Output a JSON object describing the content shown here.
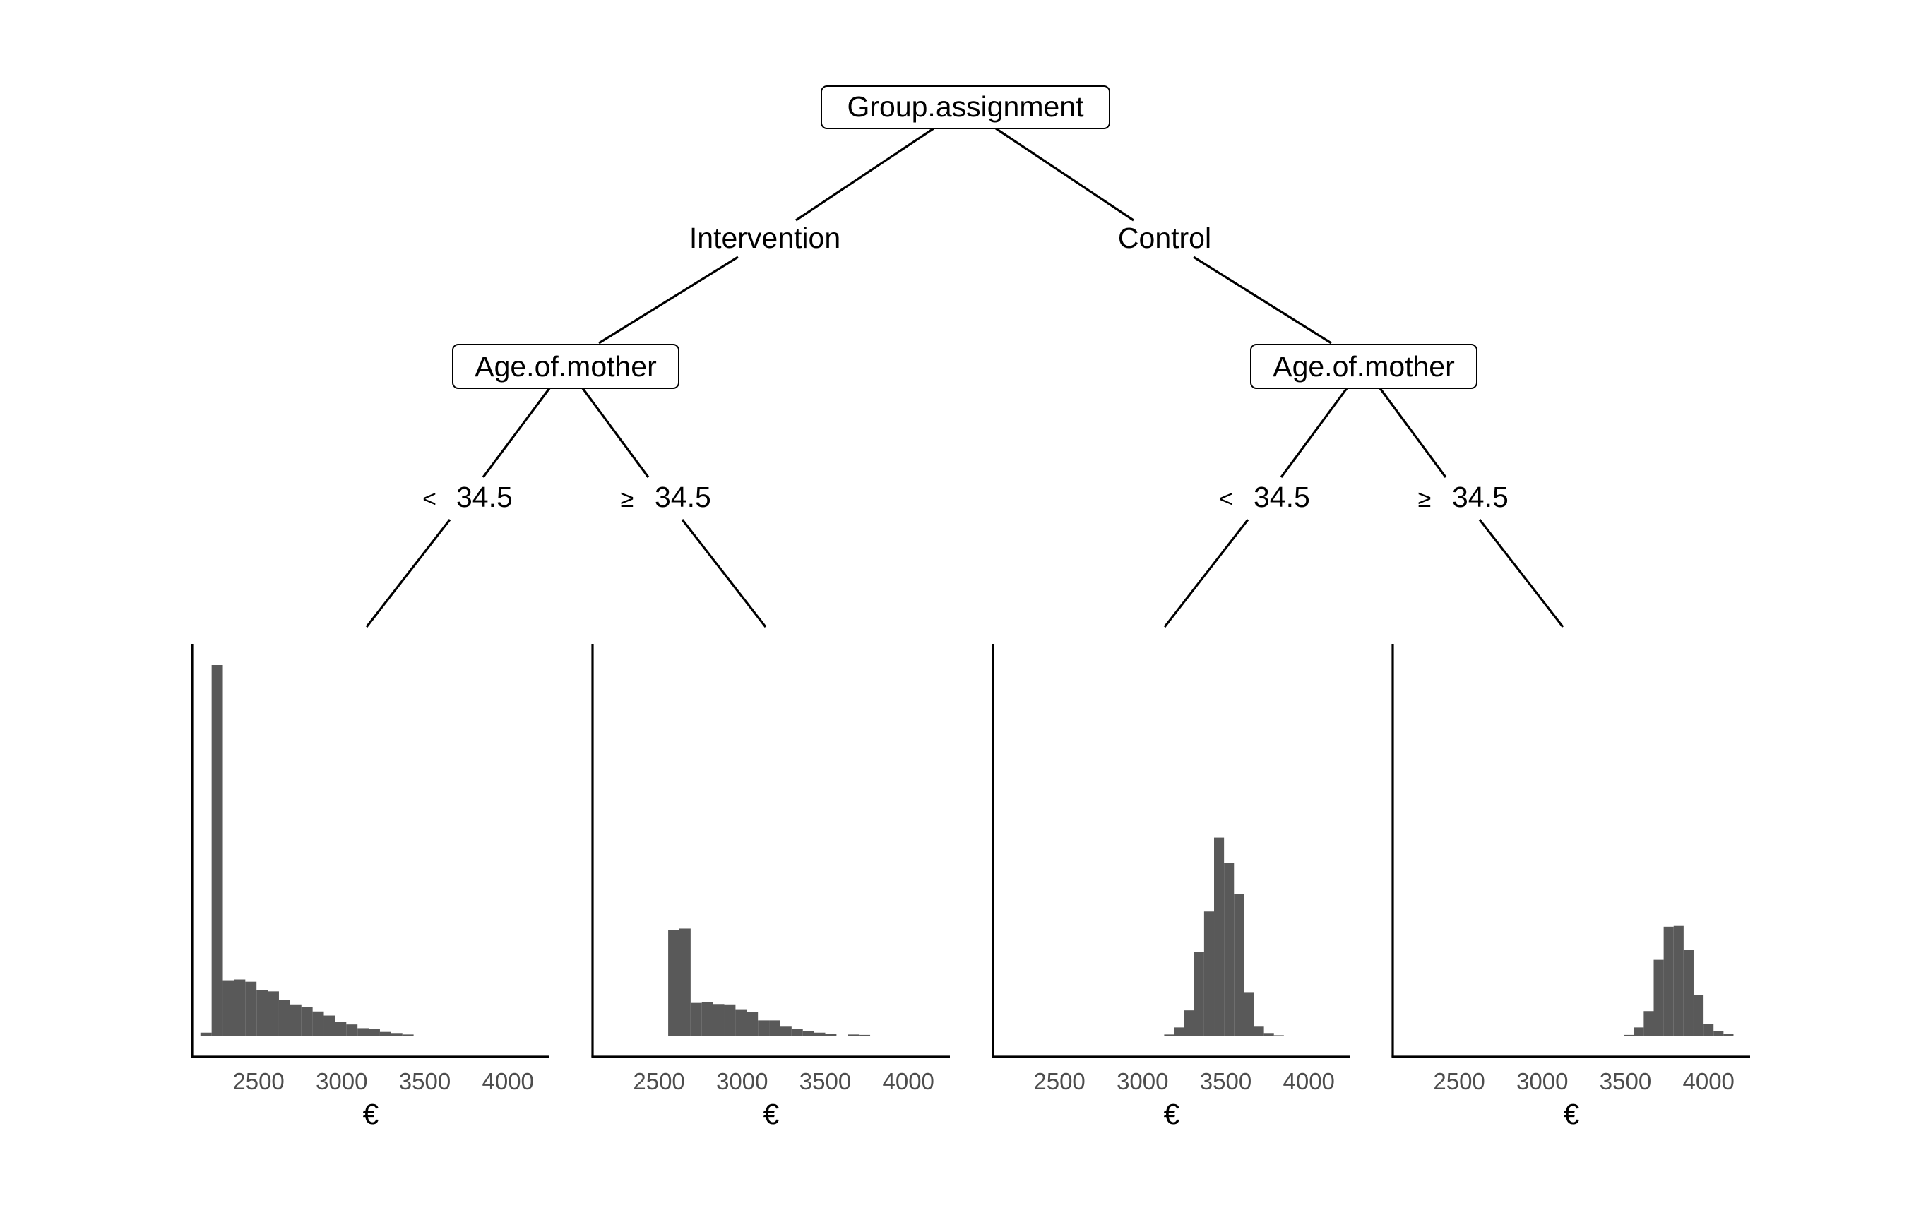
{
  "tree": {
    "root": {
      "label": "Group.assignment"
    },
    "branches": [
      {
        "edge_label": "Intervention",
        "node": {
          "label": "Age.of.mother"
        },
        "splits": [
          {
            "symbol": "<",
            "value": "34.5"
          },
          {
            "symbol": "≥",
            "value": "34.5"
          }
        ]
      },
      {
        "edge_label": "Control",
        "node": {
          "label": "Age.of.mother"
        },
        "splits": [
          {
            "symbol": "<",
            "value": "34.5"
          },
          {
            "symbol": "≥",
            "value": "34.5"
          }
        ]
      }
    ]
  },
  "chart_data": [
    {
      "type": "bar",
      "title": "",
      "xlabel": "€",
      "xlim": [
        2100,
        4250
      ],
      "xticks": [
        2500,
        3000,
        3500,
        4000
      ],
      "bin_width": 67.5,
      "bins_start": [
        2150,
        2217.5,
        2285,
        2352.5,
        2420,
        2487.5,
        2555,
        2622.5,
        2690,
        2757.5,
        2825,
        2892.5,
        2960,
        3027.5,
        3095,
        3162.5,
        3230,
        3297.5,
        3365
      ],
      "values": [
        1,
        100,
        15.1,
        15.3,
        14.7,
        12.4,
        12.1,
        9.8,
        8.6,
        7.9,
        6.7,
        5.6,
        3.9,
        3.2,
        2.2,
        2.0,
        1.2,
        0.9,
        0.5
      ]
    },
    {
      "type": "bar",
      "title": "",
      "xlabel": "€",
      "xlim": [
        2100,
        4250
      ],
      "xticks": [
        2500,
        3000,
        3500,
        4000
      ],
      "bin_width": 67.5,
      "bins_start": [
        2555,
        2622.5,
        2690,
        2757.5,
        2825,
        2892.5,
        2960,
        3027.5,
        3095,
        3162.5,
        3230,
        3297.5,
        3365,
        3432.5,
        3500,
        3635,
        3702.5
      ],
      "values": [
        28.6,
        29.0,
        9.0,
        9.2,
        8.7,
        8.6,
        7.3,
        6.6,
        4.3,
        4.3,
        2.8,
        2.0,
        1.5,
        1.0,
        0.6,
        0.5,
        0.4
      ]
    },
    {
      "type": "bar",
      "title": "",
      "xlabel": "€",
      "xlim": [
        2100,
        4250
      ],
      "xticks": [
        2500,
        3000,
        3500,
        4000
      ],
      "bin_width": 60,
      "bins_start": [
        3130,
        3190,
        3250,
        3310,
        3370,
        3430,
        3490,
        3550,
        3610,
        3670,
        3730,
        3790
      ],
      "values": [
        0.5,
        2.4,
        7.0,
        22.8,
        33.6,
        53.5,
        46.6,
        38.3,
        11.9,
        2.8,
        0.9,
        0.3
      ]
    },
    {
      "type": "bar",
      "title": "",
      "xlabel": "€",
      "xlim": [
        2100,
        4250
      ],
      "xticks": [
        2500,
        3000,
        3500,
        4000
      ],
      "bin_width": 60,
      "bins_start": [
        3490,
        3550,
        3610,
        3670,
        3730,
        3790,
        3850,
        3910,
        3970,
        4030,
        4090
      ],
      "values": [
        0.4,
        2.4,
        6.8,
        20.6,
        29.5,
        29.9,
        23.3,
        11.2,
        3.4,
        1.4,
        0.6
      ]
    }
  ]
}
